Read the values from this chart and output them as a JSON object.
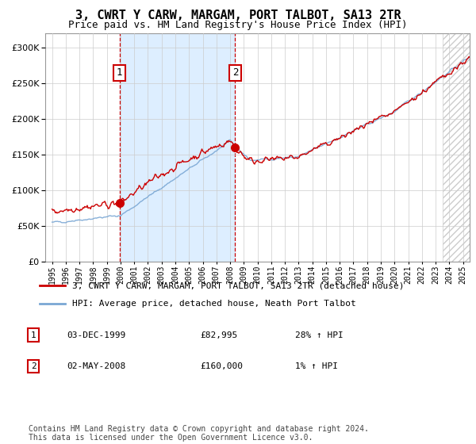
{
  "title": "3, CWRT Y CARW, MARGAM, PORT TALBOT, SA13 2TR",
  "subtitle": "Price paid vs. HM Land Registry's House Price Index (HPI)",
  "legend_line1": "3, CWRT Y CARW, MARGAM, PORT TALBOT, SA13 2TR (detached house)",
  "legend_line2": "HPI: Average price, detached house, Neath Port Talbot",
  "transaction1_date": "03-DEC-1999",
  "transaction1_price": "£82,995",
  "transaction1_hpi": "28% ↑ HPI",
  "transaction2_date": "02-MAY-2008",
  "transaction2_price": "£160,000",
  "transaction2_hpi": "1% ↑ HPI",
  "footer": "Contains HM Land Registry data © Crown copyright and database right 2024.\nThis data is licensed under the Open Government Licence v3.0.",
  "hpi_color": "#7aa7d4",
  "price_color": "#cc0000",
  "shading_color": "#ddeeff",
  "transaction1_x": 1999.92,
  "transaction2_x": 2008.37,
  "transaction1_y": 82995,
  "transaction2_y": 160000,
  "ylim": [
    0,
    320000
  ],
  "xlim_start": 1994.5,
  "xlim_end": 2025.5
}
